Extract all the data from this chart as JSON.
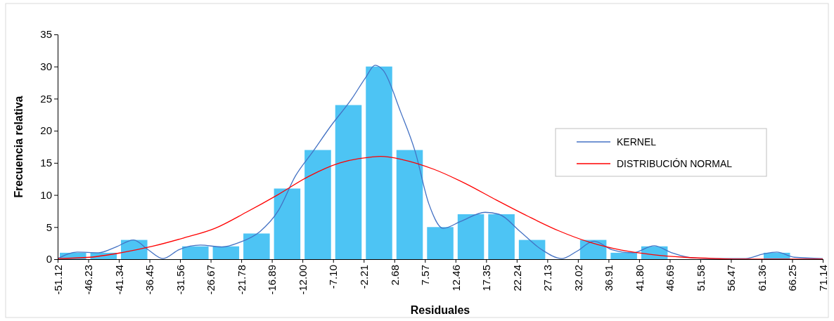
{
  "chart_data": {
    "type": "histogram",
    "xlabel": "Residuales",
    "ylabel": "Frecuencia relativa",
    "bins": [
      -51.12,
      -46.23,
      -41.34,
      -36.45,
      -31.56,
      -26.67,
      -21.78,
      -16.89,
      -12.0,
      -7.1,
      -2.21,
      2.68,
      7.57,
      12.46,
      17.35,
      22.24,
      27.13,
      32.02,
      36.91,
      41.8,
      46.69,
      51.58,
      56.47,
      61.36,
      66.25,
      71.14
    ],
    "values": [
      1,
      1,
      3,
      0,
      2,
      2,
      4,
      11,
      17,
      24,
      30,
      17,
      5,
      7,
      7,
      3,
      0,
      3,
      1,
      2,
      0,
      0,
      0,
      1,
      0
    ],
    "color": "#4dc4f4",
    "series": [
      {
        "type": "line",
        "name": "KERNEL",
        "color": "#4472c4",
        "x": [
          -51.12,
          -48,
          -44.6,
          -41.8,
          -39,
          -36.7,
          -34.3,
          -31.7,
          -28.3,
          -24.9,
          -22.1,
          -18.8,
          -15.9,
          -13.1,
          -10.3,
          -7.5,
          -4.1,
          -1.9,
          -0.4,
          0.9,
          3.7,
          6,
          8.2,
          10.5,
          13.3,
          17.2,
          19.4,
          22.8,
          26.2,
          29.5,
          31.8,
          34.6,
          37.4,
          40.8,
          44.2,
          47,
          50.3,
          54.3,
          58.8,
          61.6,
          63.8,
          66.6,
          71.14
        ],
        "values": [
          0.1,
          1.1,
          1.0,
          1.9,
          3.0,
          1.5,
          0.1,
          1.5,
          2.2,
          1.9,
          2.6,
          4.3,
          7.5,
          13,
          16.8,
          20.7,
          25,
          28.3,
          30.2,
          29.4,
          22.9,
          16.8,
          8.6,
          4.8,
          5.9,
          7.3,
          7,
          4.3,
          1.5,
          0.1,
          1.2,
          2.8,
          1.5,
          1.0,
          2.1,
          1.0,
          0.2,
          0.1,
          0.1,
          0.8,
          1.1,
          0.3,
          0.1
        ]
      },
      {
        "type": "line",
        "name": "DISTRIBUCIÓN NORMAL",
        "color": "#ff0000",
        "x": [
          -51.12,
          -46,
          -41,
          -36,
          -31,
          -26,
          -21,
          -16,
          -11,
          -6,
          -1,
          0.5,
          4,
          9,
          14,
          19,
          24,
          29,
          34,
          39,
          44,
          49,
          54,
          59,
          71.14
        ],
        "values": [
          0.1,
          0.3,
          1.0,
          2.0,
          3.3,
          4.8,
          7.3,
          10,
          12.9,
          15,
          15.9,
          16,
          15.5,
          14,
          11.8,
          9.2,
          6.7,
          4.4,
          2.6,
          1.4,
          0.7,
          0.3,
          0.1,
          0.0,
          0
        ]
      }
    ],
    "xlim": [
      -51.12,
      71.14
    ],
    "xticks": [
      -51.12,
      -46.23,
      -41.34,
      -36.45,
      -31.56,
      -26.67,
      -21.78,
      -16.89,
      {
        "value": -12,
        "label": "-12.00"
      },
      {
        "value": -7.1,
        "label": "-7.10"
      },
      -2.21,
      2.68,
      7.57,
      12.46,
      17.35,
      22.24,
      27.13,
      32.02,
      36.91,
      {
        "value": 41.8,
        "label": "41.80"
      },
      46.69,
      51.58,
      56.47,
      61.36,
      66.25,
      71.14
    ],
    "ylim": [
      0,
      35
    ],
    "yticks": [
      0,
      5,
      10,
      15,
      20,
      25,
      30,
      35
    ],
    "legend": "right",
    "grid": false
  }
}
